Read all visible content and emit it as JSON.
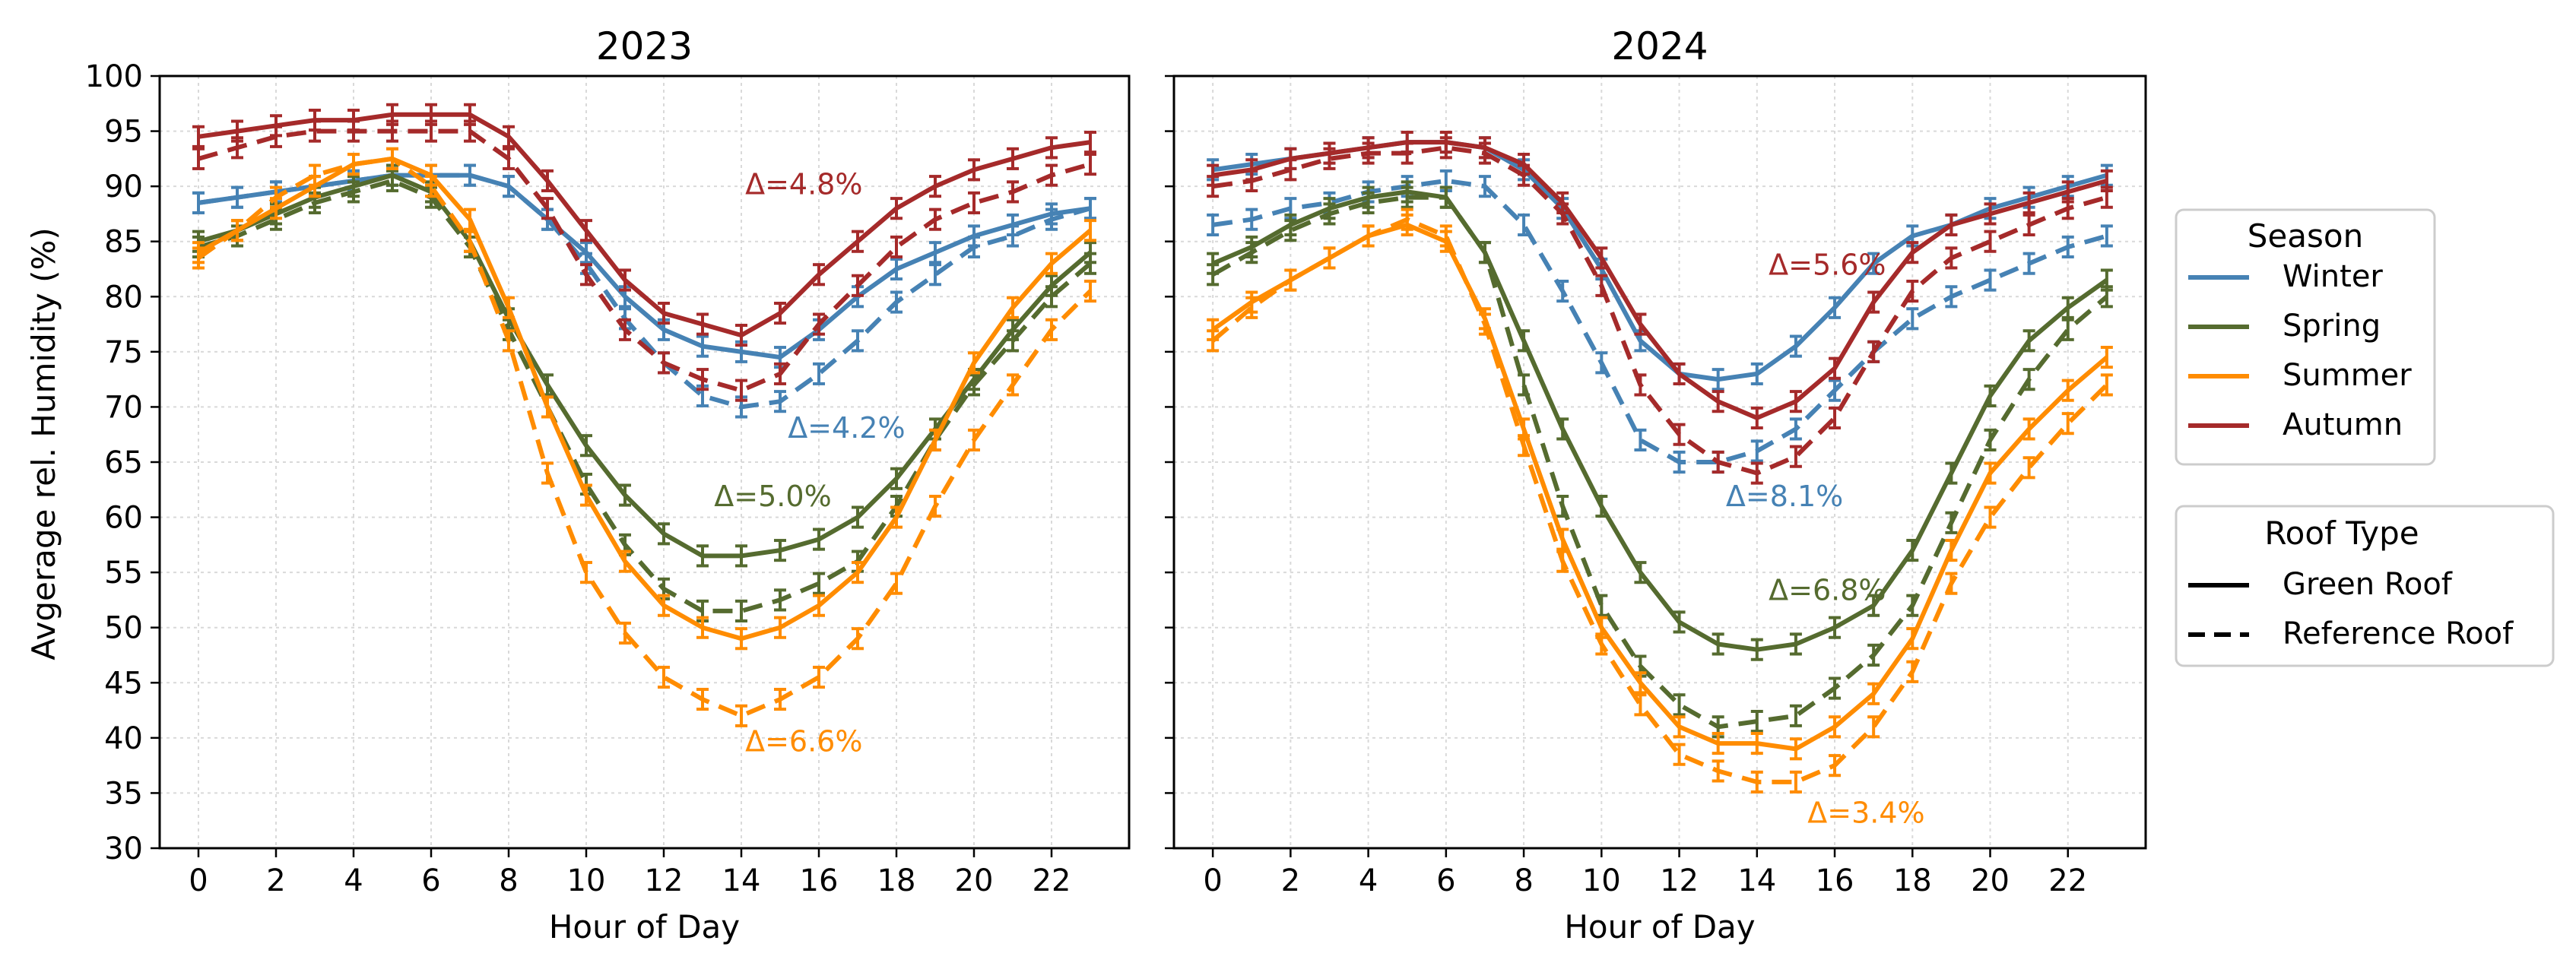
{
  "chart_data": {
    "type": "line",
    "ylabel": "Avgerage rel. Humidity (%)",
    "xlabel": "Hour of Day",
    "ylim": [
      30,
      100
    ],
    "xlim": [
      -1,
      24
    ],
    "yticks": [
      30,
      35,
      40,
      45,
      50,
      55,
      60,
      65,
      70,
      75,
      80,
      85,
      90,
      95,
      100
    ],
    "xticks": [
      0,
      2,
      4,
      6,
      8,
      10,
      12,
      14,
      16,
      18,
      20,
      22
    ],
    "grid": true,
    "colors": {
      "Winter": "#4682b4",
      "Spring": "#556b2f",
      "Summer": "#ff8c00",
      "Autumn": "#a52a2a"
    },
    "legend_season": {
      "title": "Season",
      "entries": [
        "Winter",
        "Spring",
        "Summer",
        "Autumn"
      ],
      "placement": "right"
    },
    "legend_roof": {
      "title": "Roof Type",
      "entries": [
        "Green Roof",
        "Reference Roof"
      ],
      "styles": [
        "solid",
        "dashed"
      ],
      "placement": "right"
    },
    "hours": [
      0,
      1,
      2,
      3,
      4,
      5,
      6,
      7,
      8,
      9,
      10,
      11,
      12,
      13,
      14,
      15,
      16,
      17,
      18,
      19,
      20,
      21,
      22,
      23
    ],
    "panels": [
      {
        "title": "2023",
        "series": [
          {
            "season": "Winter",
            "roof": "Green Roof",
            "values": [
              88.5,
              89,
              89.5,
              90,
              90.5,
              91,
              91,
              91,
              90,
              87,
              84,
              80,
              77,
              75.5,
              75,
              74.5,
              77,
              80,
              82.5,
              84,
              85.5,
              86.5,
              87.5,
              88
            ]
          },
          {
            "season": "Winter",
            "roof": "Reference Roof",
            "values": [
              88.5,
              89,
              89.5,
              90,
              90.5,
              91,
              91,
              91,
              90,
              87,
              83,
              78,
              74,
              71,
              70,
              70.5,
              73,
              76,
              79.5,
              82,
              84.5,
              85.5,
              87,
              88
            ]
          },
          {
            "season": "Spring",
            "roof": "Green Roof",
            "values": [
              85,
              86,
              87.5,
              89,
              90,
              91,
              89.5,
              85,
              78,
              72,
              66.5,
              62,
              58.5,
              56.5,
              56.5,
              57,
              58,
              60,
              63.5,
              68,
              72.5,
              77,
              81,
              84
            ]
          },
          {
            "season": "Spring",
            "roof": "Reference Roof",
            "values": [
              84.5,
              85.5,
              87,
              88.5,
              89.5,
              90.5,
              89,
              84.5,
              77,
              70,
              63,
              57.5,
              53.5,
              51.5,
              51.5,
              52.5,
              54,
              56,
              61,
              67,
              72,
              76,
              80,
              83
            ]
          },
          {
            "season": "Summer",
            "roof": "Green Roof",
            "values": [
              84,
              86,
              88,
              90,
              92,
              92.5,
              91,
              87,
              79,
              70,
              62,
              56,
              52,
              50,
              49,
              50,
              52,
              55,
              60,
              67,
              74,
              79,
              83,
              86
            ]
          },
          {
            "season": "Summer",
            "roof": "Reference Roof",
            "values": [
              83.5,
              86,
              89,
              91,
              92,
              92.5,
              90,
              85,
              76,
              64,
              55,
              49.5,
              45.5,
              43.5,
              42,
              43.5,
              45.5,
              49,
              54,
              61,
              67,
              72,
              77,
              80.5
            ]
          },
          {
            "season": "Autumn",
            "roof": "Green Roof",
            "values": [
              94.5,
              95,
              95.5,
              96,
              96,
              96.5,
              96.5,
              96.5,
              94.5,
              90.5,
              86,
              81.5,
              78.5,
              77.5,
              76.5,
              78.5,
              82,
              85,
              88,
              90,
              91.5,
              92.5,
              93.5,
              94
            ]
          },
          {
            "season": "Autumn",
            "roof": "Reference Roof",
            "values": [
              92.5,
              93.5,
              94.5,
              95,
              95,
              95,
              95,
              95,
              92.5,
              88,
              82,
              77,
              74,
              72.5,
              71.5,
              73,
              77.5,
              81,
              84.5,
              87,
              88.5,
              89.5,
              91,
              92
            ]
          }
        ],
        "annotations": [
          {
            "text": "Δ=4.8%",
            "season": "Autumn",
            "x": 14.1,
            "y": 89.3
          },
          {
            "text": "Δ=4.2%",
            "season": "Winter",
            "x": 15.2,
            "y": 67.2
          },
          {
            "text": "Δ=5.0%",
            "season": "Spring",
            "x": 13.3,
            "y": 61.0
          },
          {
            "text": "Δ=6.6%",
            "season": "Summer",
            "x": 14.1,
            "y": 38.8
          }
        ]
      },
      {
        "title": "2024",
        "series": [
          {
            "season": "Winter",
            "roof": "Green Roof",
            "values": [
              91.5,
              92,
              92.5,
              93,
              93.5,
              94,
              94,
              93.5,
              91.5,
              88,
              82.5,
              76,
              73,
              72.5,
              73,
              75.5,
              79,
              83,
              85.5,
              86.5,
              88,
              89,
              90,
              91
            ]
          },
          {
            "season": "Winter",
            "roof": "Reference Roof",
            "values": [
              86.5,
              87,
              88,
              88.5,
              89.5,
              90,
              90.5,
              90,
              86.5,
              80.5,
              74,
              67,
              65,
              65,
              66,
              68,
              71.5,
              75,
              78,
              80,
              81.5,
              83,
              84.5,
              85.5
            ]
          },
          {
            "season": "Spring",
            "roof": "Green Roof",
            "values": [
              83,
              84.5,
              86.5,
              88,
              89,
              89.5,
              89,
              84,
              76,
              68,
              61,
              55,
              50.5,
              48.5,
              48,
              48.5,
              50,
              52,
              57,
              64,
              71,
              76,
              79,
              81.5
            ]
          },
          {
            "season": "Spring",
            "roof": "Reference Roof",
            "values": [
              82,
              84,
              86,
              87.5,
              88.5,
              89,
              89,
              84,
              72,
              61,
              52,
              46.5,
              43,
              41,
              41.5,
              42,
              44.5,
              47.5,
              52,
              59.5,
              67,
              72.5,
              77,
              80
            ]
          },
          {
            "season": "Summer",
            "roof": "Green Roof",
            "values": [
              77,
              79.5,
              81.5,
              83.5,
              85.5,
              86.5,
              85,
              78,
              68,
              58,
              50,
              45,
              41,
              39.5,
              39.5,
              39,
              41,
              44,
              49,
              57,
              64,
              68,
              71.5,
              74.5
            ]
          },
          {
            "season": "Summer",
            "roof": "Reference Roof",
            "values": [
              76,
              79,
              81.5,
              83.5,
              85.5,
              87,
              85.5,
              77.5,
              66.5,
              56,
              48.5,
              43,
              38.5,
              37,
              36,
              36,
              37.5,
              41,
              46,
              54,
              60,
              64.5,
              68.5,
              72
            ]
          },
          {
            "season": "Autumn",
            "roof": "Green Roof",
            "values": [
              91,
              91.5,
              92.5,
              93,
              93.5,
              94,
              94,
              93.5,
              92,
              88.5,
              83.5,
              77.5,
              73,
              70.5,
              69,
              70.5,
              73.5,
              79.5,
              84,
              86.5,
              87.5,
              88.5,
              89.5,
              90.5
            ]
          },
          {
            "season": "Autumn",
            "roof": "Reference Roof",
            "values": [
              90,
              90.5,
              91.5,
              92.5,
              93,
              93,
              93.5,
              93,
              91,
              87.5,
              81,
              72,
              67.5,
              65,
              64,
              65.5,
              69,
              75,
              80.5,
              83.5,
              85,
              86.5,
              88,
              89
            ]
          }
        ],
        "annotations": [
          {
            "text": "Δ=5.6%",
            "season": "Autumn",
            "x": 14.3,
            "y": 82.0
          },
          {
            "text": "Δ=8.1%",
            "season": "Winter",
            "x": 13.2,
            "y": 61.0
          },
          {
            "text": "Δ=6.8%",
            "season": "Spring",
            "x": 14.3,
            "y": 52.5
          },
          {
            "text": "Δ=3.4%",
            "season": "Summer",
            "x": 15.3,
            "y": 32.3
          }
        ]
      }
    ]
  }
}
